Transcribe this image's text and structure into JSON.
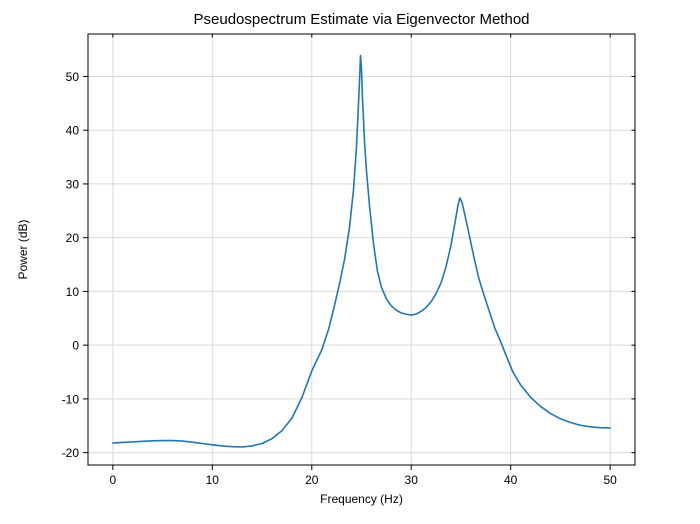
{
  "chart_data": {
    "type": "line",
    "title": "Pseudospectrum Estimate via Eigenvector Method",
    "xlabel": "Frequency (Hz)",
    "ylabel": "Power (dB)",
    "xlim": [
      -2.5,
      52.5
    ],
    "ylim": [
      -22.3,
      57.9
    ],
    "xticks": [
      0,
      10,
      20,
      30,
      40,
      50
    ],
    "yticks": [
      -20,
      -10,
      0,
      10,
      20,
      30,
      40,
      50
    ],
    "grid": true,
    "legend": false,
    "line_color": "#1f77b4",
    "grid_color": "#d9d9d9",
    "axis_color": "#000000",
    "background_color": "#ffffff",
    "peaks": [
      {
        "frequency_hz": 24.9,
        "power_db": 53.9
      },
      {
        "frequency_hz": 34.9,
        "power_db": 27.4
      }
    ],
    "series": [
      {
        "points": [
          [
            0,
            -18.2
          ],
          [
            1,
            -18.1
          ],
          [
            2,
            -18.0
          ],
          [
            3,
            -17.9
          ],
          [
            4,
            -17.8
          ],
          [
            5,
            -17.75
          ],
          [
            6,
            -17.75
          ],
          [
            7,
            -17.85
          ],
          [
            8,
            -18.05
          ],
          [
            9,
            -18.3
          ],
          [
            10,
            -18.55
          ],
          [
            11,
            -18.75
          ],
          [
            12,
            -18.9
          ],
          [
            13,
            -18.95
          ],
          [
            14,
            -18.75
          ],
          [
            15,
            -18.3
          ],
          [
            16,
            -17.4
          ],
          [
            17,
            -15.9
          ],
          [
            18,
            -13.6
          ],
          [
            19,
            -9.8
          ],
          [
            20,
            -4.8
          ],
          [
            21,
            -0.9
          ],
          [
            21.7,
            3.0
          ],
          [
            22.3,
            7.5
          ],
          [
            22.8,
            11.5
          ],
          [
            23.3,
            16
          ],
          [
            23.8,
            22
          ],
          [
            24.2,
            29
          ],
          [
            24.5,
            37
          ],
          [
            24.7,
            45
          ],
          [
            24.82,
            50
          ],
          [
            24.9,
            53.9
          ],
          [
            25.0,
            51.5
          ],
          [
            25.1,
            46
          ],
          [
            25.3,
            38
          ],
          [
            25.5,
            32.5
          ],
          [
            25.8,
            26
          ],
          [
            26.2,
            19
          ],
          [
            26.6,
            13.8
          ],
          [
            27,
            10.8
          ],
          [
            27.5,
            8.6
          ],
          [
            28,
            7.3
          ],
          [
            28.5,
            6.5
          ],
          [
            29,
            6.0
          ],
          [
            29.5,
            5.75
          ],
          [
            30,
            5.6
          ],
          [
            30.5,
            5.8
          ],
          [
            31,
            6.3
          ],
          [
            31.5,
            7.0
          ],
          [
            32,
            8.1
          ],
          [
            32.5,
            9.6
          ],
          [
            33,
            11.6
          ],
          [
            33.5,
            14.6
          ],
          [
            34,
            18.6
          ],
          [
            34.4,
            22.8
          ],
          [
            34.7,
            26
          ],
          [
            34.9,
            27.4
          ],
          [
            35.1,
            26.6
          ],
          [
            35.4,
            24.2
          ],
          [
            35.8,
            20.8
          ],
          [
            36.3,
            16.4
          ],
          [
            36.8,
            12.4
          ],
          [
            37.3,
            9.4
          ],
          [
            37.8,
            6.6
          ],
          [
            38.4,
            3.2
          ],
          [
            39,
            0.6
          ],
          [
            39.6,
            -2.2
          ],
          [
            40.2,
            -4.9
          ],
          [
            41,
            -7.4
          ],
          [
            42,
            -9.7
          ],
          [
            43,
            -11.4
          ],
          [
            44,
            -12.7
          ],
          [
            45,
            -13.7
          ],
          [
            46,
            -14.4
          ],
          [
            47,
            -14.9
          ],
          [
            48,
            -15.2
          ],
          [
            49,
            -15.35
          ],
          [
            50,
            -15.4
          ]
        ]
      }
    ]
  }
}
